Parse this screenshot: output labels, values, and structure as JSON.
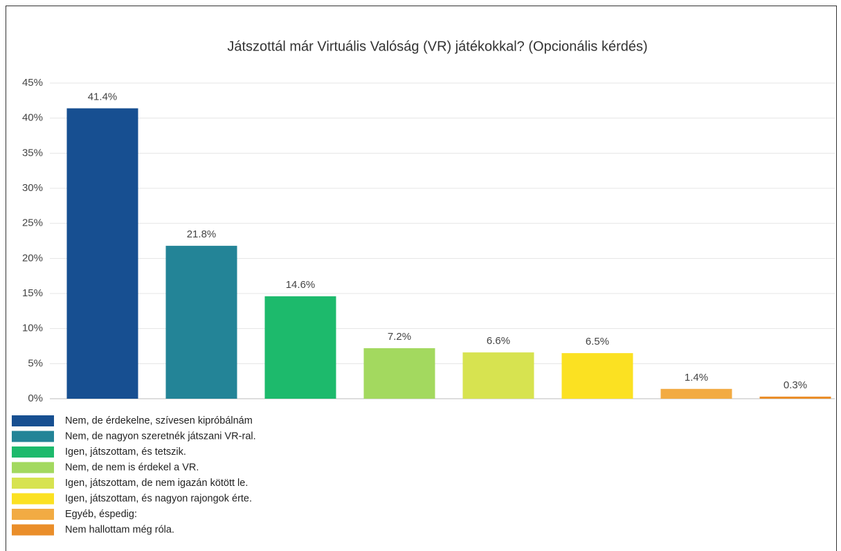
{
  "chart_data": {
    "type": "bar",
    "title": "Játszottál már Virtuális Valóság (VR) játékokkal? (Opcionális kérdés)",
    "categories": [
      "Nem, de érdekelne, szívesen kipróbálnám",
      "Nem, de nagyon szeretnék játszani VR-ral.",
      "Igen, játszottam, és tetszik.",
      "Nem, de nem is érdekel a VR.",
      "Igen, játszottam, de nem igazán kötött le.",
      "Igen, játszottam, és nagyon rajongok érte.",
      "Egyéb, éspedig:",
      "Nem hallottam még róla."
    ],
    "values": [
      41.4,
      21.8,
      14.6,
      7.2,
      6.6,
      6.5,
      1.4,
      0.3
    ],
    "value_labels": [
      "41.4%",
      "21.8%",
      "14.6%",
      "7.2%",
      "6.6%",
      "6.5%",
      "1.4%",
      "0.3%"
    ],
    "colors": [
      "#174f91",
      "#238497",
      "#1dba6c",
      "#a3d95f",
      "#d7e350",
      "#fbe122",
      "#f2ab43",
      "#ea8e2a"
    ],
    "ylim": [
      0,
      45
    ],
    "yticks": [
      {
        "value": 0,
        "label": "0%"
      },
      {
        "value": 5,
        "label": "5%"
      },
      {
        "value": 10,
        "label": "10%"
      },
      {
        "value": 15,
        "label": "15%"
      },
      {
        "value": 20,
        "label": "20%"
      },
      {
        "value": 25,
        "label": "25%"
      },
      {
        "value": 30,
        "label": "30%"
      },
      {
        "value": 35,
        "label": "35%"
      },
      {
        "value": 40,
        "label": "40%"
      },
      {
        "value": 45,
        "label": "45%"
      }
    ],
    "grid": true,
    "legend": "bottom-left"
  }
}
